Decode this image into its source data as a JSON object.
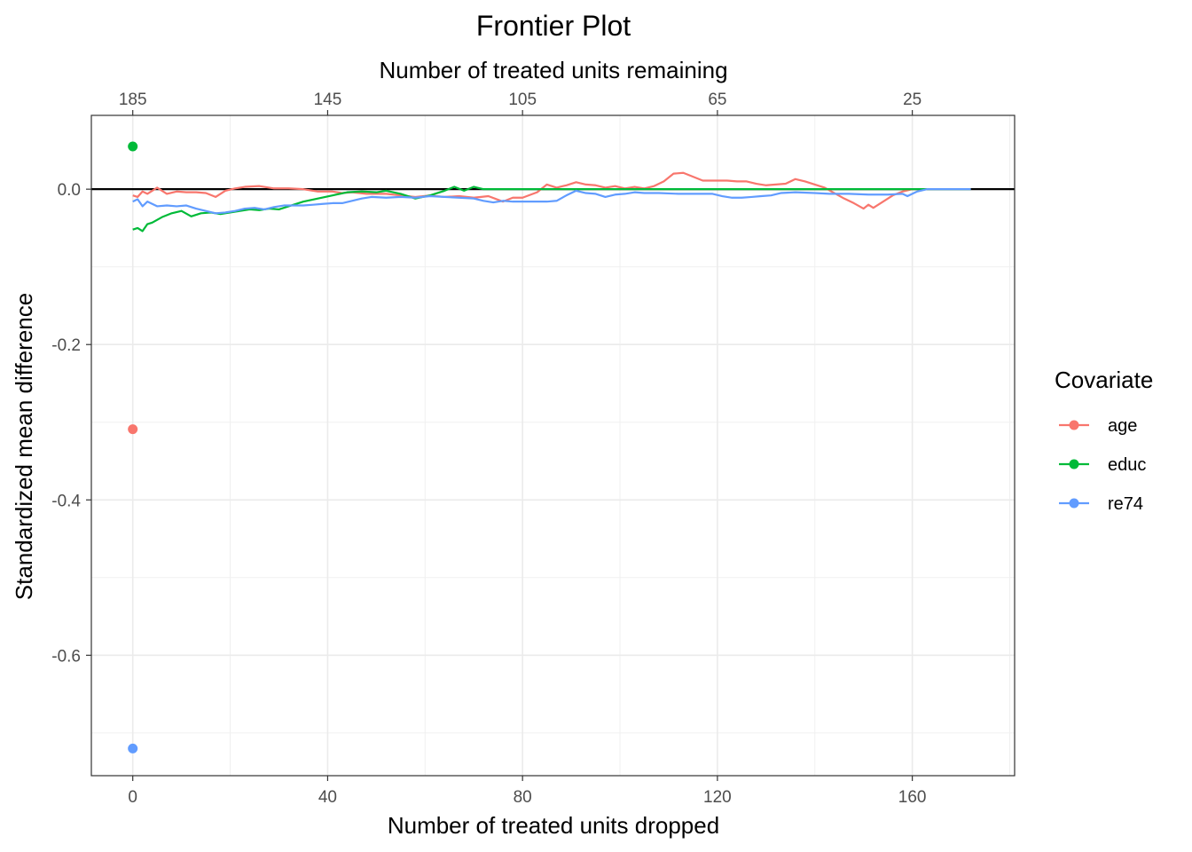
{
  "chart_data": {
    "type": "line",
    "title": "Frontier Plot",
    "xlabel": "Number of treated units dropped",
    "ylabel": "Standardized mean difference",
    "x2label": "Number of treated units remaining",
    "xlim": [
      -8.5,
      181
    ],
    "ylim": [
      -0.755,
      0.095
    ],
    "x_ticks": [
      0,
      40,
      80,
      120,
      160
    ],
    "x_tick_labels": [
      "0",
      "40",
      "80",
      "120",
      "160"
    ],
    "x2_ticks": [
      0,
      40,
      80,
      120,
      160
    ],
    "x2_tick_labels": [
      "185",
      "145",
      "105",
      "65",
      "25"
    ],
    "y_ticks": [
      0,
      -0.2,
      -0.4,
      -0.6
    ],
    "y_tick_labels": [
      "0.0",
      "-0.2",
      "-0.4",
      "-0.6"
    ],
    "reference_line": 0,
    "grid": true,
    "legend": {
      "title": "Covariate",
      "placement": "right"
    },
    "series": [
      {
        "name": "age",
        "color": "#F8766D",
        "start_point": [
          0,
          -0.309
        ],
        "points": [
          [
            0,
            -0.008
          ],
          [
            1,
            -0.01
          ],
          [
            2,
            -0.003
          ],
          [
            3,
            -0.006
          ],
          [
            5,
            0.002
          ],
          [
            7,
            -0.006
          ],
          [
            9,
            -0.003
          ],
          [
            11,
            -0.004
          ],
          [
            13,
            -0.004
          ],
          [
            15,
            -0.005
          ],
          [
            17,
            -0.01
          ],
          [
            19,
            -0.002
          ],
          [
            21,
            0.001
          ],
          [
            23,
            0.003
          ],
          [
            26,
            0.004
          ],
          [
            29,
            0.001
          ],
          [
            32,
            0.001
          ],
          [
            35,
            0.0
          ],
          [
            38,
            -0.003
          ],
          [
            41,
            -0.003
          ],
          [
            43,
            -0.005
          ],
          [
            45,
            -0.004
          ],
          [
            48,
            -0.006
          ],
          [
            52,
            -0.006
          ],
          [
            55,
            -0.008
          ],
          [
            58,
            -0.01
          ],
          [
            61,
            -0.008
          ],
          [
            64,
            -0.01
          ],
          [
            67,
            -0.009
          ],
          [
            70,
            -0.011
          ],
          [
            73,
            -0.009
          ],
          [
            76,
            -0.016
          ],
          [
            78,
            -0.011
          ],
          [
            80,
            -0.011
          ],
          [
            83,
            -0.004
          ],
          [
            85,
            0.006
          ],
          [
            87,
            0.002
          ],
          [
            89,
            0.005
          ],
          [
            91,
            0.009
          ],
          [
            93,
            0.006
          ],
          [
            95,
            0.005
          ],
          [
            97,
            0.002
          ],
          [
            99,
            0.004
          ],
          [
            101,
            0.001
          ],
          [
            103,
            0.003
          ],
          [
            105,
            0.001
          ],
          [
            107,
            0.004
          ],
          [
            109,
            0.01
          ],
          [
            111,
            0.02
          ],
          [
            113,
            0.021
          ],
          [
            115,
            0.016
          ],
          [
            117,
            0.011
          ],
          [
            120,
            0.011
          ],
          [
            122,
            0.011
          ],
          [
            124,
            0.01
          ],
          [
            126,
            0.01
          ],
          [
            128,
            0.007
          ],
          [
            130,
            0.005
          ],
          [
            132,
            0.006
          ],
          [
            134,
            0.007
          ],
          [
            136,
            0.013
          ],
          [
            138,
            0.01
          ],
          [
            140,
            0.006
          ],
          [
            142,
            0.002
          ],
          [
            144,
            -0.005
          ],
          [
            146,
            -0.012
          ],
          [
            148,
            -0.018
          ],
          [
            150,
            -0.025
          ],
          [
            151,
            -0.02
          ],
          [
            152,
            -0.024
          ],
          [
            154,
            -0.016
          ],
          [
            156,
            -0.008
          ],
          [
            158,
            -0.003
          ],
          [
            160,
            0.0
          ],
          [
            162,
            0.0
          ],
          [
            165,
            0.0
          ],
          [
            168,
            0.0
          ],
          [
            172,
            0.0
          ]
        ]
      },
      {
        "name": "educ",
        "color": "#00BA38",
        "start_point": [
          0,
          0.055
        ],
        "points": [
          [
            0,
            -0.052
          ],
          [
            1,
            -0.05
          ],
          [
            2,
            -0.054
          ],
          [
            3,
            -0.045
          ],
          [
            4,
            -0.043
          ],
          [
            6,
            -0.036
          ],
          [
            8,
            -0.031
          ],
          [
            10,
            -0.028
          ],
          [
            12,
            -0.035
          ],
          [
            14,
            -0.031
          ],
          [
            16,
            -0.03
          ],
          [
            18,
            -0.032
          ],
          [
            20,
            -0.03
          ],
          [
            22,
            -0.028
          ],
          [
            24,
            -0.026
          ],
          [
            26,
            -0.027
          ],
          [
            28,
            -0.025
          ],
          [
            30,
            -0.026
          ],
          [
            32,
            -0.022
          ],
          [
            35,
            -0.016
          ],
          [
            38,
            -0.012
          ],
          [
            41,
            -0.008
          ],
          [
            44,
            -0.004
          ],
          [
            47,
            -0.003
          ],
          [
            50,
            -0.004
          ],
          [
            52,
            -0.002
          ],
          [
            55,
            -0.006
          ],
          [
            58,
            -0.012
          ],
          [
            61,
            -0.008
          ],
          [
            64,
            -0.002
          ],
          [
            66,
            0.003
          ],
          [
            68,
            -0.002
          ],
          [
            70,
            0.003
          ],
          [
            72,
            0.0
          ],
          [
            80,
            0.0
          ],
          [
            100,
            0.0
          ],
          [
            120,
            0.0
          ],
          [
            140,
            0.0
          ],
          [
            160,
            0.0
          ],
          [
            172,
            0.0
          ]
        ]
      },
      {
        "name": "re74",
        "color": "#619CFF",
        "start_point": [
          0,
          -0.72
        ],
        "points": [
          [
            0,
            -0.016
          ],
          [
            1,
            -0.013
          ],
          [
            2,
            -0.022
          ],
          [
            3,
            -0.016
          ],
          [
            5,
            -0.022
          ],
          [
            7,
            -0.021
          ],
          [
            9,
            -0.022
          ],
          [
            11,
            -0.021
          ],
          [
            13,
            -0.025
          ],
          [
            15,
            -0.028
          ],
          [
            17,
            -0.031
          ],
          [
            19,
            -0.03
          ],
          [
            21,
            -0.028
          ],
          [
            23,
            -0.025
          ],
          [
            25,
            -0.024
          ],
          [
            27,
            -0.026
          ],
          [
            29,
            -0.023
          ],
          [
            31,
            -0.021
          ],
          [
            33,
            -0.021
          ],
          [
            35,
            -0.021
          ],
          [
            37,
            -0.02
          ],
          [
            39,
            -0.019
          ],
          [
            41,
            -0.018
          ],
          [
            43,
            -0.018
          ],
          [
            45,
            -0.015
          ],
          [
            47,
            -0.012
          ],
          [
            49,
            -0.01
          ],
          [
            52,
            -0.011
          ],
          [
            55,
            -0.01
          ],
          [
            58,
            -0.011
          ],
          [
            61,
            -0.009
          ],
          [
            64,
            -0.01
          ],
          [
            67,
            -0.011
          ],
          [
            70,
            -0.012
          ],
          [
            72,
            -0.015
          ],
          [
            74,
            -0.017
          ],
          [
            76,
            -0.015
          ],
          [
            78,
            -0.016
          ],
          [
            80,
            -0.016
          ],
          [
            85,
            -0.016
          ],
          [
            87,
            -0.015
          ],
          [
            89,
            -0.008
          ],
          [
            91,
            -0.002
          ],
          [
            93,
            -0.005
          ],
          [
            95,
            -0.006
          ],
          [
            97,
            -0.01
          ],
          [
            99,
            -0.007
          ],
          [
            101,
            -0.006
          ],
          [
            103,
            -0.004
          ],
          [
            105,
            -0.005
          ],
          [
            108,
            -0.005
          ],
          [
            112,
            -0.006
          ],
          [
            116,
            -0.006
          ],
          [
            119,
            -0.006
          ],
          [
            121,
            -0.009
          ],
          [
            123,
            -0.011
          ],
          [
            125,
            -0.011
          ],
          [
            127,
            -0.01
          ],
          [
            129,
            -0.009
          ],
          [
            131,
            -0.008
          ],
          [
            133,
            -0.005
          ],
          [
            136,
            -0.004
          ],
          [
            140,
            -0.005
          ],
          [
            143,
            -0.006
          ],
          [
            147,
            -0.006
          ],
          [
            151,
            -0.007
          ],
          [
            155,
            -0.007
          ],
          [
            158,
            -0.006
          ],
          [
            159,
            -0.009
          ],
          [
            161,
            -0.003
          ],
          [
            163,
            0.0
          ],
          [
            167,
            0.0
          ],
          [
            172,
            0.0
          ]
        ]
      }
    ]
  }
}
